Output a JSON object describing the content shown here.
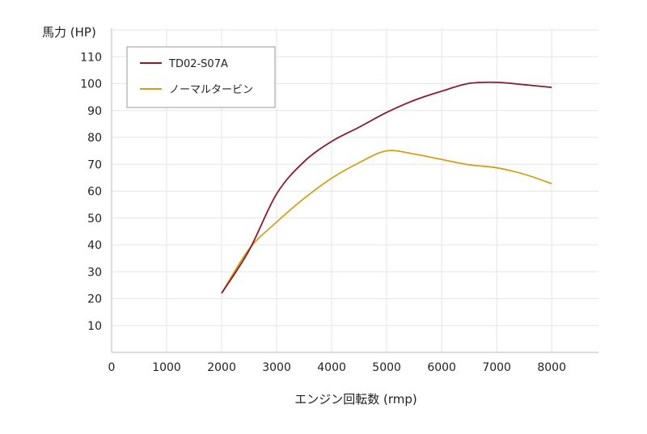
{
  "chart_data": {
    "type": "line",
    "title": "",
    "ylabel": "馬力 (HP)",
    "xlabel": "エンジン回転数 (rmp)",
    "xlim": [
      0,
      8850
    ],
    "ylim": [
      0,
      120
    ],
    "xticks": [
      0,
      1000,
      2000,
      3000,
      4000,
      5000,
      6000,
      7000,
      8000
    ],
    "yticks": [
      10,
      20,
      30,
      40,
      50,
      60,
      70,
      80,
      90,
      100,
      110
    ],
    "grid": true,
    "legend_position": "top-left",
    "x": [
      2000,
      2500,
      3000,
      3500,
      4000,
      4500,
      5000,
      5500,
      6000,
      6500,
      7000,
      7500,
      8000
    ],
    "series": [
      {
        "name": "TD02-S07A",
        "color": "#8b1a2b",
        "values": [
          22,
          38,
          59,
          71,
          78.5,
          83.8,
          89.3,
          93.8,
          97.2,
          100.1,
          100.5,
          99.6,
          98.6
        ]
      },
      {
        "name": "ノーマルタービン",
        "color": "#d4a017",
        "values": [
          22,
          38.5,
          48.5,
          57.3,
          64.8,
          70.6,
          75,
          73.8,
          71.8,
          69.8,
          68.7,
          66.3,
          62.8
        ]
      }
    ]
  }
}
